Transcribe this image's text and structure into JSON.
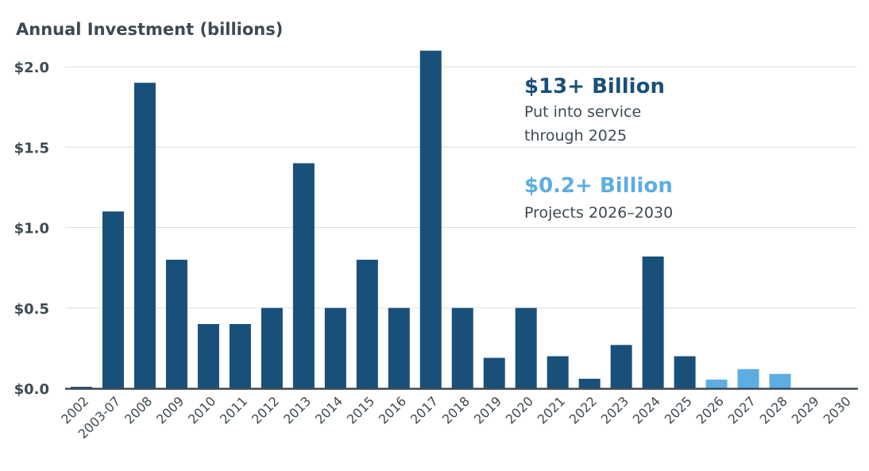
{
  "chart_data": {
    "type": "bar",
    "ylabel": "Annual Investment (billions)",
    "ylim": [
      0,
      2.0
    ],
    "yticks": [
      "$0.0",
      "$0.5",
      "$1.0",
      "$1.5",
      "$2.0"
    ],
    "ytick_values": [
      0,
      0.5,
      1.0,
      1.5,
      2.0
    ],
    "grid": true,
    "categories": [
      "2002",
      "2003-07",
      "2008",
      "2009",
      "2010",
      "2011",
      "2012",
      "2013",
      "2014",
      "2015",
      "2016",
      "2017",
      "2018",
      "2019",
      "2020",
      "2021",
      "2022",
      "2023",
      "2024",
      "2025",
      "2026",
      "2027",
      "2028",
      "2029",
      "2030"
    ],
    "values": [
      0.01,
      1.1,
      1.9,
      0.8,
      0.4,
      0.4,
      0.5,
      1.4,
      0.5,
      0.8,
      0.5,
      2.1,
      0.5,
      0.19,
      0.5,
      0.2,
      0.06,
      0.27,
      0.82,
      0.2,
      0.055,
      0.12,
      0.09,
      0,
      0
    ],
    "bar_groups": [
      "in-service",
      "in-service",
      "in-service",
      "in-service",
      "in-service",
      "in-service",
      "in-service",
      "in-service",
      "in-service",
      "in-service",
      "in-service",
      "in-service",
      "in-service",
      "in-service",
      "in-service",
      "in-service",
      "in-service",
      "in-service",
      "in-service",
      "in-service",
      "projected",
      "projected",
      "projected",
      "projected",
      "projected"
    ],
    "colors": {
      "in-service": "#19507a",
      "projected": "#5dade2",
      "text": "#3d4a52",
      "grid": "#dddddd"
    },
    "annotations": [
      {
        "headline": "$13+ Billion",
        "lines": [
          "Put into service",
          "through 2025"
        ],
        "color": "#19507a"
      },
      {
        "headline": "$0.2+ Billion",
        "lines": [
          "Projects 2026–2030"
        ],
        "color": "#5dade2"
      }
    ]
  }
}
